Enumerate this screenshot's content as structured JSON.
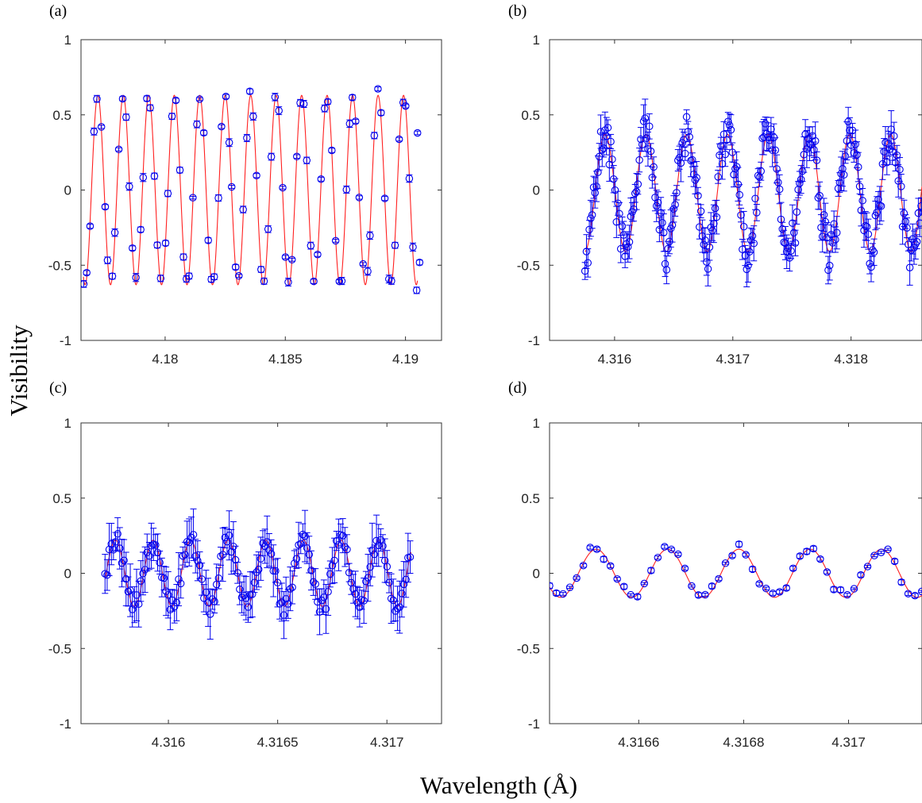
{
  "figure": {
    "ylabel": "Visibility",
    "xlabel": "Wavelength (Å)"
  },
  "colors": {
    "data": "#0000ee",
    "fit": "#ff2020",
    "axes": "#333333"
  },
  "chart_data": [
    {
      "panel": "(a)",
      "type": "scatter",
      "xlim": [
        4.1765,
        4.1915
      ],
      "ylim": [
        -1,
        1
      ],
      "xticks": [
        4.18,
        4.185,
        4.19
      ],
      "xtick_labels": [
        "4.18",
        "4.185",
        "4.19"
      ],
      "yticks": [
        -1,
        -0.5,
        0,
        0.5,
        1
      ],
      "ytick_labels": [
        "-1",
        "-0.5",
        "0",
        "0.5",
        "1"
      ],
      "fit": {
        "period": 0.00106,
        "amplitude": 0.63,
        "peak_at": 4.1772,
        "offset": 0,
        "x_range": [
          4.1766,
          4.1905
        ]
      },
      "points": {
        "x_start": 4.1766,
        "x_step": 0.0001475,
        "count": 96,
        "phase_jitter": 0.11,
        "noise": 0.05,
        "err_mean": 0.018
      },
      "extra_points": [
        [
          4.1905,
          0.38
        ]
      ]
    },
    {
      "panel": "(b)",
      "type": "scatter",
      "xlim": [
        4.31545,
        4.3186
      ],
      "ylim": [
        -1,
        1
      ],
      "xticks": [
        4.316,
        4.317,
        4.318
      ],
      "xtick_labels": [
        "4.316",
        "4.317",
        "4.318"
      ],
      "yticks": [
        -1,
        -0.5,
        0,
        0.5,
        1
      ],
      "ytick_labels": [
        "-1",
        "-0.5",
        "0",
        "0.5",
        "1"
      ],
      "fit": {
        "period": 0.000345,
        "amplitude": 0.39,
        "peak_at": 4.31592,
        "offset": -0.02,
        "x_range": [
          4.31575,
          4.3186
        ]
      },
      "points": {
        "x_start": 4.31575,
        "x_step": 1.21e-05,
        "count": 236,
        "phase_jitter": 0.0,
        "noise": 0.13,
        "err_mean": 0.085
      }
    },
    {
      "panel": "(c)",
      "type": "scatter",
      "xlim": [
        4.3156,
        4.31725
      ],
      "ylim": [
        -1,
        1
      ],
      "xticks": [
        4.316,
        4.3165,
        4.317
      ],
      "xtick_labels": [
        "4.316",
        "4.3165",
        "4.317"
      ],
      "yticks": [
        -1,
        -0.5,
        0,
        0.5,
        1
      ],
      "ytick_labels": [
        "-1",
        "-0.5",
        "0",
        "0.5",
        "1"
      ],
      "fit": {
        "period": 0.000172,
        "amplitude": 0.22,
        "peak_at": 4.31593,
        "offset": 0,
        "x_range": [
          4.31571,
          4.31711
        ]
      },
      "points": {
        "x_start": 4.31571,
        "x_step": 9.63e-06,
        "count": 146,
        "phase_jitter": 0.0,
        "noise": 0.06,
        "err_mean": 0.12
      }
    },
    {
      "panel": "(d)",
      "type": "scatter",
      "xlim": [
        4.31643,
        4.31714
      ],
      "ylim": [
        -1,
        1
      ],
      "xticks": [
        4.3166,
        4.3168,
        4.317
      ],
      "xtick_labels": [
        "4.3166",
        "4.3168",
        "4.317"
      ],
      "yticks": [
        -1,
        -0.5,
        0,
        0.5,
        1
      ],
      "ytick_labels": [
        "-1",
        "-0.5",
        "0",
        "0.5",
        "1"
      ],
      "fit": {
        "period": 0.000136,
        "amplitude": 0.16,
        "peak_at": 4.316655,
        "offset": 0,
        "x_range": [
          4.31643,
          4.31714
        ]
      },
      "points": {
        "x_start": 4.31643,
        "x_step": 1.29e-05,
        "count": 56,
        "phase_jitter": 0.0,
        "noise": 0.035,
        "err_mean": 0.012
      }
    }
  ]
}
